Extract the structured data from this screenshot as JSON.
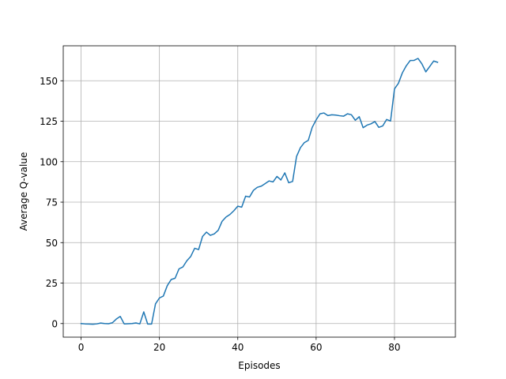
{
  "chart_data": {
    "type": "line",
    "title": "",
    "xlabel": "Episodes",
    "ylabel": "Average Q-value",
    "xlim": [
      -4.55,
      95.55
    ],
    "ylim": [
      -8.4,
      171.6
    ],
    "xticks": [
      0,
      20,
      40,
      60,
      80
    ],
    "yticks": [
      0,
      25,
      50,
      75,
      100,
      125,
      150
    ],
    "grid": true,
    "legend": "none",
    "series": [
      {
        "color": "#1f77b4",
        "x": [
          0,
          1,
          2,
          3,
          4,
          5,
          6,
          7,
          8,
          9,
          10,
          11,
          12,
          13,
          14,
          15,
          16,
          17,
          18,
          19,
          20,
          21,
          22,
          23,
          24,
          25,
          26,
          27,
          28,
          29,
          30,
          31,
          32,
          33,
          34,
          35,
          36,
          37,
          38,
          39,
          40,
          41,
          42,
          43,
          44,
          45,
          46,
          47,
          48,
          49,
          50,
          51,
          52,
          53,
          54,
          55,
          56,
          57,
          58,
          59,
          60,
          61,
          62,
          63,
          64,
          65,
          66,
          67,
          68,
          69,
          70,
          71,
          72,
          73,
          74,
          75,
          76,
          77,
          78,
          79,
          80,
          81,
          82,
          83,
          84,
          85,
          86,
          87,
          88,
          89,
          90,
          91
        ],
        "y": [
          0,
          -0.2,
          -0.3,
          -0.4,
          -0.2,
          0.3,
          0,
          -0.1,
          0.5,
          2.8,
          4.4,
          -0.2,
          -0.1,
          0,
          0.4,
          -0.2,
          7.2,
          -0.3,
          -0.3,
          12.2,
          15.8,
          17,
          23.4,
          27.2,
          28,
          33.8,
          35,
          38.8,
          41.5,
          46.5,
          45.7,
          53.8,
          56.5,
          54.5,
          55.4,
          57.6,
          63.2,
          65.8,
          67.4,
          69.7,
          72.5,
          71.9,
          78.7,
          78.2,
          82.3,
          84.2,
          84.9,
          86.5,
          88.1,
          87.5,
          90.9,
          88.7,
          93.1,
          87,
          87.8,
          103.2,
          108.7,
          111.8,
          113.2,
          121.2,
          125.8,
          129.6,
          130.1,
          128.5,
          129,
          128.8,
          128.4,
          128.1,
          129.6,
          129,
          125.6,
          127.8,
          121,
          122.6,
          123.4,
          124.8,
          121.2,
          122.1,
          126.1,
          125.1,
          145,
          148.4,
          154.8,
          159.2,
          162.5,
          162.6,
          163.8,
          160.4,
          155.5,
          158.8,
          162.2,
          161.4
        ]
      }
    ]
  }
}
